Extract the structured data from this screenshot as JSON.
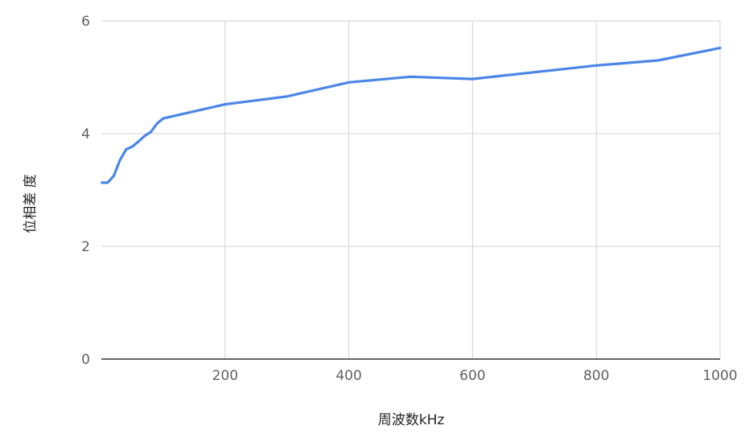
{
  "chart_data": {
    "type": "line",
    "title": "",
    "xlabel": "周波数kHz",
    "ylabel": "位相差 度",
    "xlim": [
      0,
      1000
    ],
    "ylim": [
      0,
      6
    ],
    "xticks": [
      200,
      400,
      600,
      800,
      1000
    ],
    "yticks": [
      0,
      2,
      4,
      6
    ],
    "xtick_labels": [
      "200",
      "400",
      "600",
      "800",
      "1000"
    ],
    "ytick_labels": [
      "0",
      "2",
      "4",
      "6"
    ],
    "grid": true,
    "legend": "none",
    "colors": {
      "line": "#4a86e8",
      "grid": "#d9d9d9",
      "axis": "#333333"
    },
    "series": [
      {
        "x": [
          1,
          10,
          20,
          30,
          40,
          50,
          60,
          70,
          80,
          90,
          100,
          200,
          300,
          400,
          500,
          600,
          700,
          800,
          900,
          1000
        ],
        "values": [
          3.13,
          3.13,
          3.25,
          3.53,
          3.72,
          3.77,
          3.86,
          3.96,
          4.03,
          4.18,
          4.27,
          4.52,
          4.66,
          4.91,
          5.01,
          4.97,
          5.09,
          5.21,
          5.3,
          5.52
        ]
      }
    ]
  }
}
